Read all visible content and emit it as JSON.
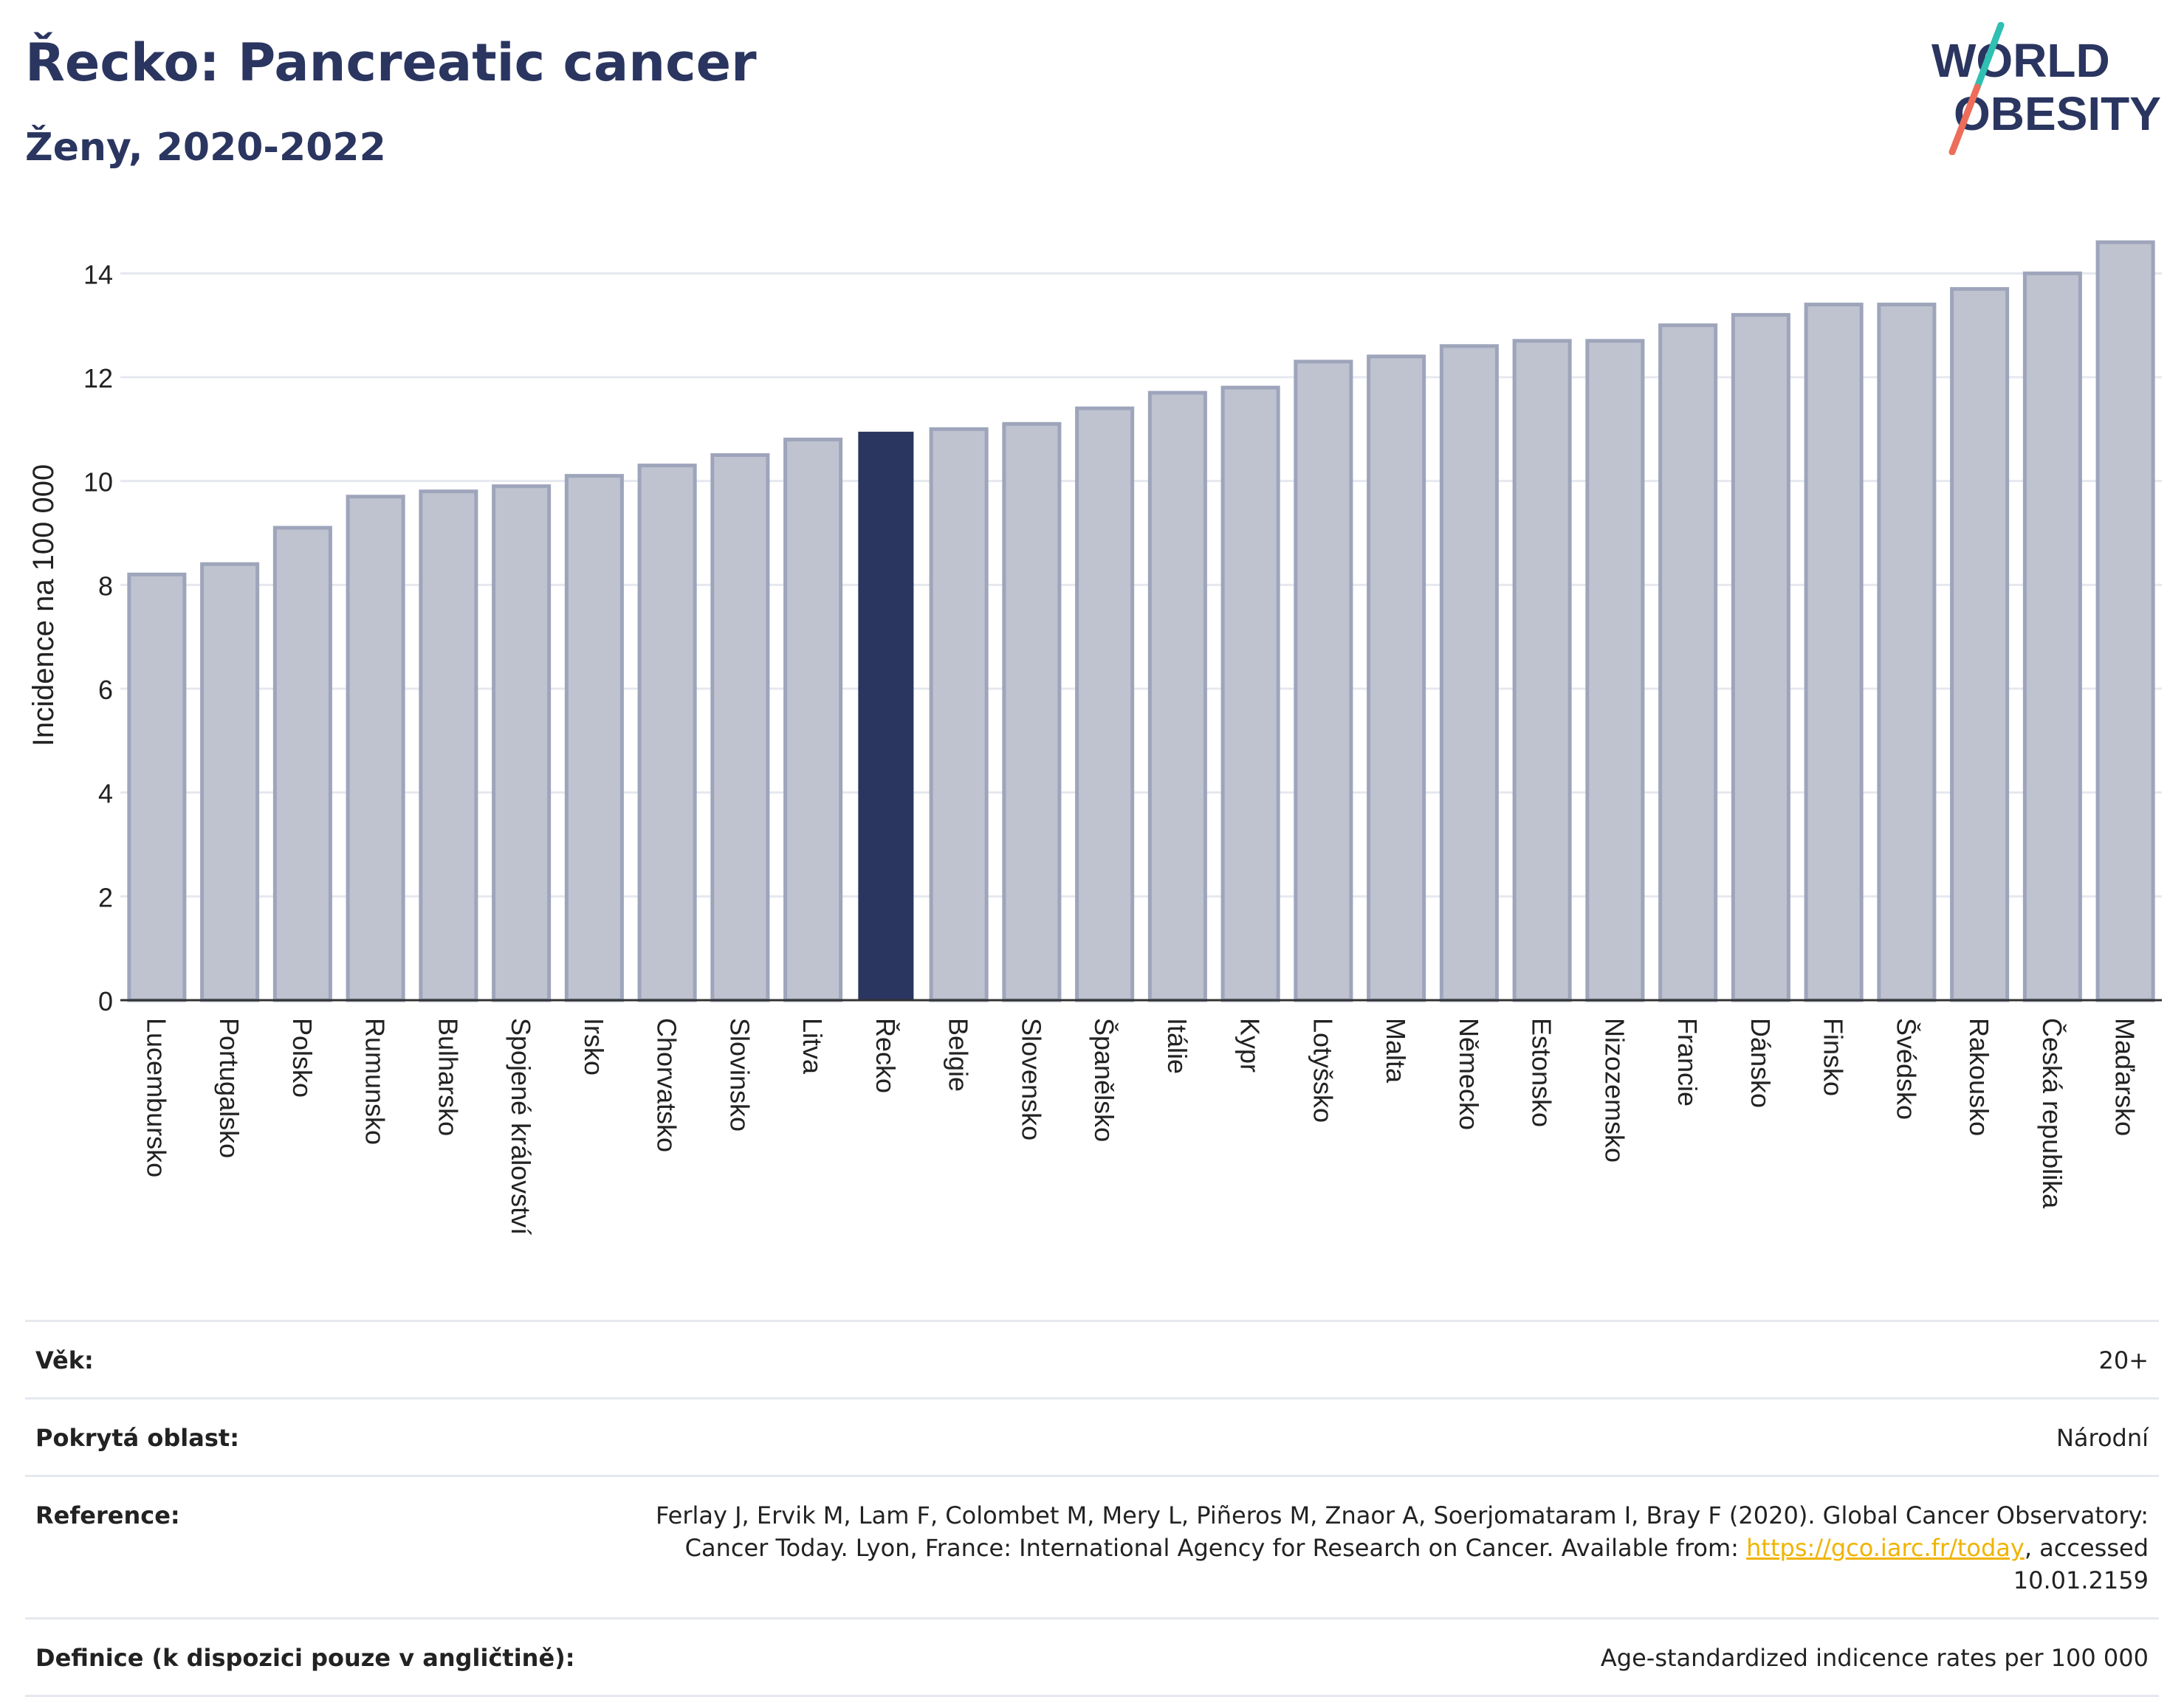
{
  "header": {
    "title": "Řecko: Pancreatic cancer",
    "subtitle": "Ženy, 2020-2022"
  },
  "logo": {
    "line1": "WORLD",
    "line2": "OBESITY"
  },
  "colors": {
    "bar": "#bfc3d0",
    "bar_edge": "#9ea5bb",
    "highlight": "#2a3560",
    "grid": "#e6e8ef",
    "axis": "#333333"
  },
  "chart_data": {
    "type": "bar",
    "categories": [
      "Lucembursko",
      "Portugalsko",
      "Polsko",
      "Rumunsko",
      "Bulharsko",
      "Spojené království",
      "Irsko",
      "Chorvatsko",
      "Slovinsko",
      "Litva",
      "Řecko",
      "Belgie",
      "Slovensko",
      "Španělsko",
      "Itálie",
      "Kypr",
      "Lotyšsko",
      "Malta",
      "Německo",
      "Estonsko",
      "Nizozemsko",
      "Francie",
      "Dánsko",
      "Finsko",
      "Švédsko",
      "Rakousko",
      "Česká republika",
      "Maďarsko"
    ],
    "values": [
      8.2,
      8.4,
      9.1,
      9.7,
      9.8,
      9.9,
      10.1,
      10.3,
      10.5,
      10.8,
      10.95,
      11.0,
      11.1,
      11.4,
      11.7,
      11.8,
      12.3,
      12.4,
      12.6,
      12.7,
      12.7,
      13.0,
      13.2,
      13.4,
      13.4,
      13.7,
      14.0,
      14.6
    ],
    "highlight": "Řecko",
    "ylabel": "Incidence na 100 000",
    "xlabel": "",
    "ylim": [
      0,
      15
    ],
    "yticks": [
      0,
      2,
      4,
      6,
      8,
      10,
      12,
      14
    ],
    "grid": true
  },
  "meta": [
    {
      "label": "Věk:",
      "value": "20+"
    },
    {
      "label": "Pokrytá oblast:",
      "value": "Národní"
    },
    {
      "label": "Reference:",
      "value": "Ferlay J, Ervik M, Lam F, Colombet M, Mery L, Piñeros M, Znaor A, Soerjomataram I, Bray F (2020). Global Cancer Observatory: Cancer Today. Lyon, France: International Agency for Research on Cancer. Available from: ",
      "link": "https://gco.iarc.fr/today",
      "value_after": ", accessed 10.01.2159"
    },
    {
      "label": "Definice (k dispozici pouze v angličtině):",
      "value": "Age-standardized indicence rates per 100 000"
    }
  ]
}
